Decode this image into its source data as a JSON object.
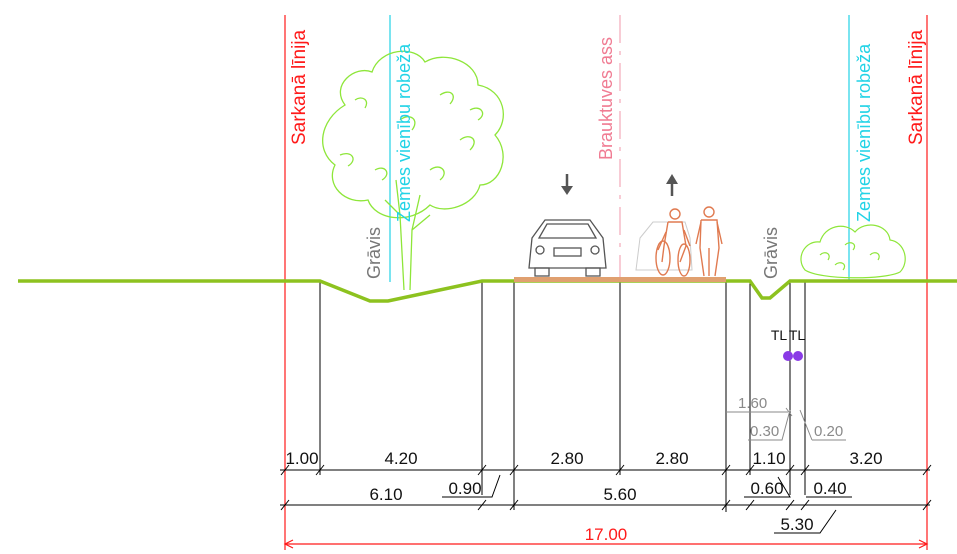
{
  "labels": {
    "red_line_left": "Sarkanā līnija",
    "red_line_right": "Sarkanā līnija",
    "land_boundary_left": "Zemes vienību robeža",
    "land_boundary_right": "Zemes vienību robeža",
    "road_axis": "Brauktuves ass",
    "ditch_left": "Grāvis",
    "ditch_right": "Grāvis",
    "tl_1": "TL",
    "tl_2": "TL"
  },
  "dimensions": {
    "row1": [
      "1.00",
      "4.20",
      "2.80",
      "2.80",
      "1.10",
      "3.20"
    ],
    "row2": [
      "6.10",
      "0.90",
      "5.60",
      "0.60",
      "0.40"
    ],
    "row3": [
      "17.00",
      "5.30"
    ],
    "small": [
      "1.60",
      "0.30",
      "0.20"
    ]
  },
  "colors": {
    "red_line": "#ff1a1a",
    "land_boundary": "#22d3e6",
    "road_axis": "#f4a9b9",
    "ground": "#8dc21f",
    "tree": "#8ee63a",
    "road_surface": "#e0a070",
    "figures": "#e07a50",
    "utility": "#8a3ae6"
  },
  "icons": [
    "car-icon",
    "cyclist-icon",
    "pedestrian-icon",
    "tree-icon",
    "shrub-icon",
    "arrow-down-icon",
    "arrow-up-icon",
    "utility-marker-icon"
  ]
}
